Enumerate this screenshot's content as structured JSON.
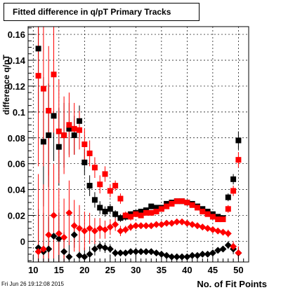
{
  "chart_data": {
    "type": "scatter",
    "title": "Fitted difference in q/pT Primary Tracks",
    "ylabel": "difference q/pT",
    "xlabel": "No. of Fit Points",
    "footer": "Fri Jun 26 19:12:08 2015",
    "xlim": [
      9,
      52
    ],
    "ylim": [
      -0.016,
      0.166
    ],
    "xticks": [
      10,
      15,
      20,
      25,
      30,
      35,
      40,
      45,
      50
    ],
    "yticks": [
      0,
      0.02,
      0.04,
      0.06,
      0.08,
      0.1,
      0.12,
      0.14,
      0.16
    ],
    "ytick_labels": [
      "0",
      "0.02",
      "0.04",
      "0.06",
      "0.08",
      "0.1",
      "0.12",
      "0.14",
      "0.16"
    ],
    "grid": true,
    "series": [
      {
        "marker": "square",
        "color": "#000000",
        "points": [
          [
            11,
            0.149,
            0.05
          ],
          [
            12,
            0.077,
            0.05
          ],
          [
            13,
            0.082,
            0.04
          ],
          [
            14,
            0.097,
            0.035
          ],
          [
            15,
            0.073,
            0.03
          ],
          [
            16,
            0.082,
            0.025
          ],
          [
            17,
            0.087,
            0.02
          ],
          [
            18,
            0.082,
            0.015
          ],
          [
            19,
            0.093,
            0.012
          ],
          [
            20,
            0.061,
            0.01
          ],
          [
            21,
            0.043,
            0.008
          ],
          [
            22,
            0.032,
            0.006
          ],
          [
            23,
            0.026,
            0.005
          ],
          [
            24,
            0.023,
            0.004
          ],
          [
            25,
            0.025,
            0.004
          ],
          [
            26,
            0.021,
            0.003
          ],
          [
            27,
            0.018,
            0.003
          ],
          [
            28,
            0.019,
            0.003
          ],
          [
            29,
            0.021,
            0.002
          ],
          [
            30,
            0.022,
            0.002
          ],
          [
            31,
            0.023,
            0.002
          ],
          [
            32,
            0.024,
            0.002
          ],
          [
            33,
            0.027,
            0.002
          ],
          [
            34,
            0.026,
            0.002
          ],
          [
            35,
            0.026,
            0.002
          ],
          [
            36,
            0.029,
            0.002
          ],
          [
            37,
            0.03,
            0.002
          ],
          [
            38,
            0.031,
            0.002
          ],
          [
            39,
            0.031,
            0.002
          ],
          [
            40,
            0.03,
            0.002
          ],
          [
            41,
            0.029,
            0.002
          ],
          [
            42,
            0.027,
            0.002
          ],
          [
            43,
            0.025,
            0.002
          ],
          [
            44,
            0.023,
            0.002
          ],
          [
            45,
            0.021,
            0.002
          ],
          [
            46,
            0.019,
            0.002
          ],
          [
            47,
            0.018,
            0.002
          ],
          [
            48,
            0.034,
            0.003
          ],
          [
            49,
            0.048,
            0.004
          ],
          [
            50,
            0.078,
            0.007
          ]
        ]
      },
      {
        "marker": "square",
        "color": "#ff0000",
        "points": [
          [
            11,
            0.128,
            0.07
          ],
          [
            12,
            0.118,
            0.06
          ],
          [
            13,
            0.101,
            0.05
          ],
          [
            14,
            0.129,
            0.045
          ],
          [
            15,
            0.085,
            0.04
          ],
          [
            16,
            0.082,
            0.03
          ],
          [
            17,
            0.09,
            0.025
          ],
          [
            18,
            0.087,
            0.02
          ],
          [
            19,
            0.086,
            0.015
          ],
          [
            20,
            0.075,
            0.012
          ],
          [
            21,
            0.068,
            0.01
          ],
          [
            22,
            0.057,
            0.008
          ],
          [
            23,
            0.044,
            0.007
          ],
          [
            24,
            0.052,
            0.006
          ],
          [
            25,
            0.039,
            0.005
          ],
          [
            26,
            0.043,
            0.004
          ],
          [
            27,
            0.033,
            0.004
          ],
          [
            28,
            0.02,
            0.003
          ],
          [
            29,
            0.019,
            0.003
          ],
          [
            30,
            0.021,
            0.002
          ],
          [
            31,
            0.02,
            0.002
          ],
          [
            32,
            0.022,
            0.002
          ],
          [
            33,
            0.022,
            0.002
          ],
          [
            34,
            0.023,
            0.002
          ],
          [
            35,
            0.025,
            0.002
          ],
          [
            36,
            0.027,
            0.002
          ],
          [
            37,
            0.029,
            0.002
          ],
          [
            38,
            0.031,
            0.002
          ],
          [
            39,
            0.031,
            0.002
          ],
          [
            40,
            0.03,
            0.002
          ],
          [
            41,
            0.028,
            0.002
          ],
          [
            42,
            0.026,
            0.002
          ],
          [
            43,
            0.023,
            0.002
          ],
          [
            44,
            0.021,
            0.002
          ],
          [
            45,
            0.019,
            0.002
          ],
          [
            46,
            0.017,
            0.002
          ],
          [
            47,
            0.017,
            0.002
          ],
          [
            48,
            0.025,
            0.003
          ],
          [
            49,
            0.039,
            0.004
          ],
          [
            50,
            0.063,
            0.006
          ]
        ]
      },
      {
        "marker": "diamond",
        "color": "#000000",
        "points": [
          [
            11,
            -0.005,
            0.03
          ],
          [
            12,
            -0.008,
            0.03
          ],
          [
            13,
            -0.006,
            0.025
          ],
          [
            14,
            0.004,
            0.02
          ],
          [
            15,
            0.002,
            0.02
          ],
          [
            16,
            -0.008,
            0.015
          ],
          [
            17,
            -0.012,
            0.012
          ],
          [
            18,
            0.005,
            0.01
          ],
          [
            19,
            -0.011,
            0.008
          ],
          [
            20,
            -0.012,
            0.007
          ],
          [
            21,
            -0.01,
            0.006
          ],
          [
            22,
            -0.006,
            0.005
          ],
          [
            23,
            -0.004,
            0.004
          ],
          [
            24,
            -0.005,
            0.004
          ],
          [
            25,
            -0.006,
            0.003
          ],
          [
            26,
            -0.009,
            0.003
          ],
          [
            27,
            -0.009,
            0.002
          ],
          [
            28,
            -0.009,
            0.002
          ],
          [
            29,
            -0.008,
            0.002
          ],
          [
            30,
            -0.008,
            0.002
          ],
          [
            31,
            -0.008,
            0.002
          ],
          [
            32,
            -0.008,
            0.002
          ],
          [
            33,
            -0.008,
            0.002
          ],
          [
            34,
            -0.009,
            0.002
          ],
          [
            35,
            -0.01,
            0.002
          ],
          [
            36,
            -0.011,
            0.002
          ],
          [
            37,
            -0.012,
            0.002
          ],
          [
            38,
            -0.012,
            0.002
          ],
          [
            39,
            -0.012,
            0.002
          ],
          [
            40,
            -0.012,
            0.002
          ],
          [
            41,
            -0.011,
            0.002
          ],
          [
            42,
            -0.011,
            0.002
          ],
          [
            43,
            -0.01,
            0.002
          ],
          [
            44,
            -0.01,
            0.002
          ],
          [
            45,
            -0.009,
            0.002
          ],
          [
            46,
            -0.007,
            0.002
          ],
          [
            47,
            -0.006,
            0.002
          ],
          [
            48,
            -0.003,
            0.003
          ],
          [
            49,
            -0.006,
            0.004
          ],
          [
            50,
            -0.009,
            0.005
          ]
        ]
      },
      {
        "marker": "diamond",
        "color": "#ff0000",
        "points": [
          [
            11,
            -0.008,
            0.06
          ],
          [
            12,
            -0.006,
            0.05
          ],
          [
            13,
            0.005,
            0.05
          ],
          [
            14,
            0.02,
            0.04
          ],
          [
            15,
            0.006,
            0.035
          ],
          [
            16,
            0.003,
            0.03
          ],
          [
            17,
            0.022,
            0.025
          ],
          [
            18,
            0.012,
            0.02
          ],
          [
            19,
            0.01,
            0.018
          ],
          [
            20,
            0.008,
            0.015
          ],
          [
            21,
            0.01,
            0.012
          ],
          [
            22,
            0.008,
            0.01
          ],
          [
            23,
            0.01,
            0.008
          ],
          [
            24,
            0.009,
            0.007
          ],
          [
            25,
            0.011,
            0.006
          ],
          [
            26,
            0.013,
            0.005
          ],
          [
            27,
            0.008,
            0.004
          ],
          [
            28,
            0.009,
            0.003
          ],
          [
            29,
            0.011,
            0.003
          ],
          [
            30,
            0.012,
            0.002
          ],
          [
            31,
            0.012,
            0.002
          ],
          [
            32,
            0.012,
            0.002
          ],
          [
            33,
            0.012,
            0.002
          ],
          [
            34,
            0.013,
            0.002
          ],
          [
            35,
            0.013,
            0.002
          ],
          [
            36,
            0.014,
            0.002
          ],
          [
            37,
            0.014,
            0.002
          ],
          [
            38,
            0.015,
            0.002
          ],
          [
            39,
            0.015,
            0.002
          ],
          [
            40,
            0.014,
            0.002
          ],
          [
            41,
            0.013,
            0.002
          ],
          [
            42,
            0.012,
            0.002
          ],
          [
            43,
            0.011,
            0.002
          ],
          [
            44,
            0.01,
            0.002
          ],
          [
            45,
            0.009,
            0.002
          ],
          [
            46,
            0.008,
            0.002
          ],
          [
            47,
            0.007,
            0.002
          ],
          [
            48,
            0.006,
            0.003
          ],
          [
            49,
            -0.004,
            0.004
          ],
          [
            50,
            -0.009,
            0.005
          ]
        ]
      }
    ]
  }
}
